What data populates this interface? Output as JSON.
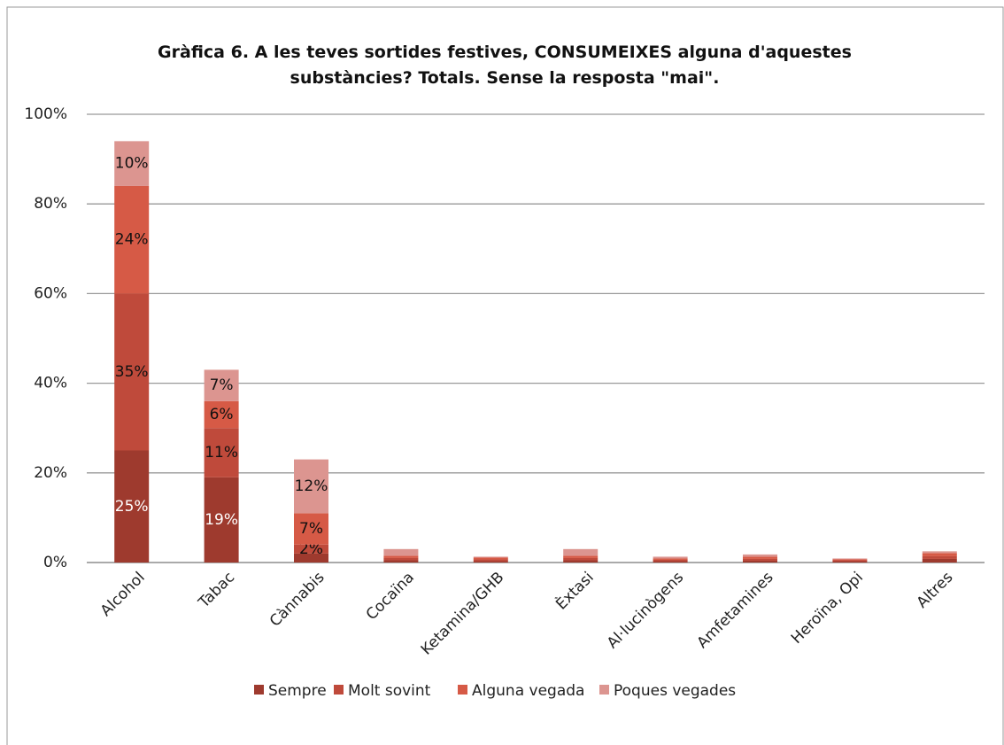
{
  "chart_data": {
    "type": "stacked_bar",
    "title": "Gràfica 6. A les teves sortides festives, CONSUMEIXES alguna d'aquestes substàncies? Totals. Sense la resposta \"mai\".",
    "categories": [
      "Alcohol",
      "Tabac",
      "Cànnabis",
      "Cocaïna",
      "Ketamina/GHB",
      "Èxtasi",
      "Al·lucinògens",
      "Amfetamines",
      "Heroïna, Opi",
      "Altres"
    ],
    "series": [
      {
        "name": "Sempre",
        "color": "#9e3a2e",
        "values": [
          25,
          19,
          2,
          0.5,
          0.3,
          0.5,
          0.3,
          0.4,
          0.3,
          0.8
        ],
        "value_labels": [
          "25%",
          "19%",
          null,
          null,
          null,
          null,
          null,
          null,
          null,
          null
        ]
      },
      {
        "name": "Molt sovint",
        "color": "#bf4a3b",
        "values": [
          35,
          11,
          2,
          0.5,
          0.4,
          0.5,
          0.3,
          0.4,
          0.2,
          0.6
        ],
        "value_labels": [
          "35%",
          "11%",
          "2%",
          null,
          null,
          null,
          null,
          null,
          null,
          null
        ]
      },
      {
        "name": "Alguna vegada",
        "color": "#d65a46",
        "values": [
          24,
          6,
          7,
          0.5,
          0.4,
          0.5,
          0.3,
          0.5,
          0.2,
          0.7
        ],
        "value_labels": [
          "24%",
          "6%",
          "7%",
          null,
          null,
          null,
          null,
          null,
          null,
          null
        ]
      },
      {
        "name": "Poques vegades",
        "color": "#dc9590",
        "values": [
          10,
          7,
          12,
          1.5,
          0.2,
          1.5,
          0.4,
          0.5,
          0.2,
          0.4
        ],
        "value_labels": [
          "10%",
          "7%",
          "12%",
          null,
          null,
          null,
          null,
          null,
          null,
          null
        ]
      }
    ],
    "ylim": [
      0,
      100
    ],
    "yticks": [
      {
        "value": 0,
        "label": "0%"
      },
      {
        "value": 20,
        "label": "20%"
      },
      {
        "value": 40,
        "label": "40%"
      },
      {
        "value": 60,
        "label": "60%"
      },
      {
        "value": 80,
        "label": "80%"
      },
      {
        "value": 100,
        "label": "100%"
      }
    ],
    "grid": true,
    "legend": "bottom"
  }
}
